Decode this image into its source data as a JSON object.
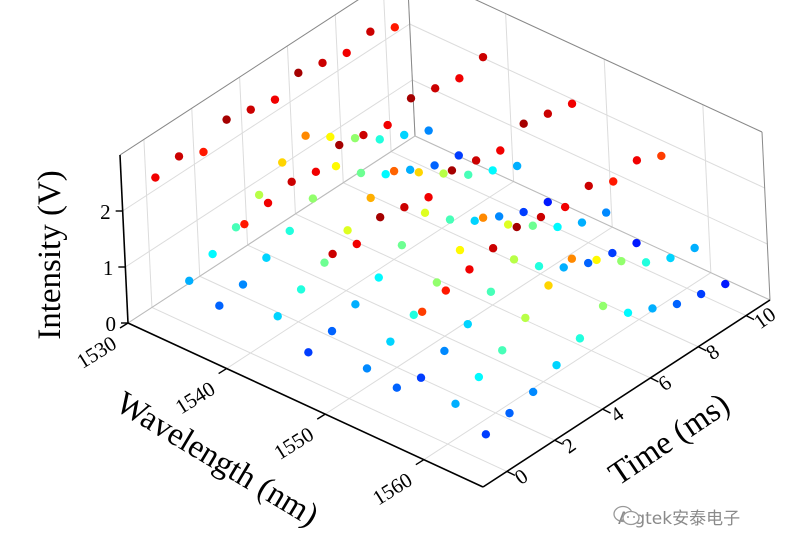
{
  "chart_data": {
    "type": "scatter",
    "subtype": "3d-scatter",
    "title": "",
    "xlabel": "Wavelength (nm)",
    "ylabel": "Time (ms)",
    "zlabel": "Intensity (V)",
    "xlim": [
      1530,
      1566
    ],
    "ylim": [
      -1,
      11
    ],
    "zlim": [
      0,
      3
    ],
    "x_ticks": [
      "1530",
      "1540",
      "1550",
      "1560"
    ],
    "y_ticks": [
      "0",
      "2",
      "4",
      "6",
      "8",
      "10"
    ],
    "z_ticks": [
      "0",
      "1",
      "2"
    ],
    "grid": true,
    "colormap": "jet",
    "color_by": "z",
    "wavelengths": [
      1531,
      1534,
      1537,
      1540,
      1543,
      1546,
      1549,
      1552,
      1555,
      1558,
      1561,
      1564
    ],
    "times": [
      0,
      1,
      2,
      3,
      4,
      5,
      6,
      7,
      8,
      9,
      10
    ],
    "intensity": [
      [
        2.4,
        0.8,
        0.6,
        2.3,
        0.9,
        0.5,
        2.5,
        0.7,
        0.6,
        2.2,
        0.8,
        0.5
      ],
      [
        2.5,
        1.0,
        0.7,
        2.4,
        1.1,
        0.6,
        2.4,
        0.9,
        0.5,
        2.3,
        1.0,
        0.6
      ],
      [
        2.3,
        1.2,
        0.9,
        2.5,
        1.3,
        0.8,
        2.6,
        1.1,
        0.7,
        2.4,
        1.2,
        0.7
      ],
      [
        2.6,
        1.5,
        1.1,
        2.4,
        1.6,
        1.0,
        2.5,
        1.4,
        0.9,
        2.5,
        1.5,
        0.9
      ],
      [
        2.5,
        1.8,
        1.4,
        2.6,
        1.9,
        1.3,
        2.4,
        1.7,
        1.2,
        2.6,
        1.8,
        1.1
      ],
      [
        2.4,
        2.0,
        1.7,
        2.5,
        2.1,
        1.6,
        2.6,
        2.0,
        1.5,
        2.5,
        2.0,
        1.4
      ],
      [
        2.6,
        1.7,
        1.3,
        2.4,
        1.8,
        1.2,
        2.5,
        1.6,
        1.1,
        2.4,
        1.7,
        1.0
      ],
      [
        2.5,
        1.4,
        1.0,
        2.6,
        1.5,
        0.9,
        2.4,
        1.3,
        0.8,
        2.5,
        1.4,
        0.8
      ],
      [
        2.4,
        1.1,
        0.8,
        2.5,
        1.2,
        0.7,
        2.6,
        1.0,
        0.6,
        2.3,
        1.1,
        0.6
      ],
      [
        2.5,
        0.9,
        0.6,
        2.4,
        1.0,
        0.5,
        2.5,
        0.8,
        0.5,
        2.4,
        0.9,
        0.5
      ],
      [
        2.3,
        0.7,
        0.5,
        2.5,
        0.8,
        0.4,
        2.4,
        0.7,
        0.4,
        2.2,
        0.8,
        0.4
      ]
    ]
  },
  "watermark": {
    "text": "Aigtek安泰电子",
    "icon": "wechat-icon"
  }
}
